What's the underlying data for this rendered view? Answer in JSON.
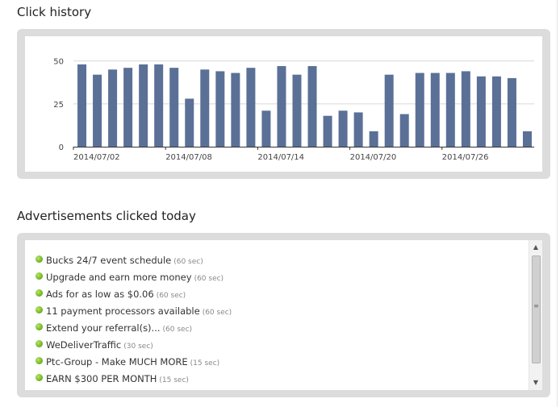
{
  "click_history": {
    "title": "Click history",
    "chart_data": {
      "type": "bar",
      "title": "",
      "xlabel": "",
      "ylabel": "",
      "ylim": [
        0,
        55
      ],
      "yticks": [
        0,
        25,
        50
      ],
      "xtick_labels": [
        "2014/07/02",
        "2014/07/08",
        "2014/07/14",
        "2014/07/20",
        "2014/07/26"
      ],
      "grid": true,
      "bar_color": "#5a7096",
      "categories": [
        "2014/07/02",
        "2014/07/03",
        "2014/07/04",
        "2014/07/05",
        "2014/07/06",
        "2014/07/07",
        "2014/07/08",
        "2014/07/09",
        "2014/07/10",
        "2014/07/11",
        "2014/07/12",
        "2014/07/13",
        "2014/07/14",
        "2014/07/15",
        "2014/07/16",
        "2014/07/17",
        "2014/07/18",
        "2014/07/19",
        "2014/07/20",
        "2014/07/21",
        "2014/07/22",
        "2014/07/23",
        "2014/07/24",
        "2014/07/25",
        "2014/07/26",
        "2014/07/27",
        "2014/07/28",
        "2014/07/29",
        "2014/07/30",
        "2014/07/31"
      ],
      "values": [
        48,
        42,
        45,
        46,
        48,
        48,
        46,
        28,
        45,
        44,
        43,
        46,
        21,
        47,
        42,
        47,
        18,
        21,
        20,
        9,
        42,
        19,
        43,
        43,
        43,
        44,
        41,
        41,
        40,
        9
      ]
    }
  },
  "ads": {
    "title": "Advertisements clicked today",
    "status_color": "#7cbc2c",
    "items": [
      {
        "title": "Bucks 24/7 event schedule",
        "duration": "(60 sec)"
      },
      {
        "title": "Upgrade and earn more money",
        "duration": "(60 sec)"
      },
      {
        "title": "Ads for as low as $0.06",
        "duration": "(60 sec)"
      },
      {
        "title": "11 payment processors available",
        "duration": "(60 sec)"
      },
      {
        "title": "Extend your referral(s)...",
        "duration": "(60 sec)"
      },
      {
        "title": "WeDeliverTraffic",
        "duration": "(30 sec)"
      },
      {
        "title": "Ptc-Group - Make MUCH MORE",
        "duration": "(15 sec)"
      },
      {
        "title": "EARN $300 PER MONTH",
        "duration": "(15 sec)"
      }
    ],
    "scroll_up_glyph": "▲",
    "scroll_down_glyph": "▼",
    "scroll_grip_glyph": "≡"
  }
}
